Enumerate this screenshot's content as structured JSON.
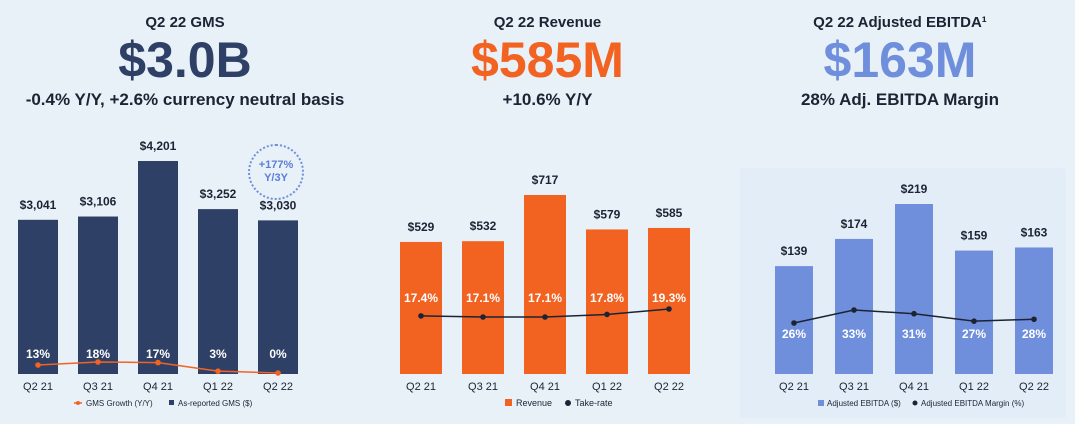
{
  "kpis": [
    {
      "label": "Q2 22 GMS",
      "value": "$3.0B",
      "sub": "-0.4% Y/Y, +2.6% currency neutral basis",
      "color": "#2e4066"
    },
    {
      "label": "Q2 22 Revenue",
      "value": "$585M",
      "sub": "+10.6% Y/Y",
      "color": "#f26322"
    },
    {
      "label": "Q2 22 Adjusted EBITDA¹",
      "value": "$163M",
      "sub": "28% Adj. EBITDA Margin",
      "color": "#6f8fdc"
    }
  ],
  "badge": {
    "line1": "+177%",
    "line2": "Y/3Y"
  },
  "chart_data": [
    {
      "type": "bar",
      "categories": [
        "Q2 21",
        "Q3 21",
        "Q4 21",
        "Q1 22",
        "Q2 22"
      ],
      "bar_color": "#2e4066",
      "line_color": "#f26322",
      "series": [
        {
          "name": "As-reported GMS ($)",
          "values": [
            3041,
            3106,
            4201,
            3252,
            3030
          ],
          "labels": [
            "$3,041",
            "$3,106",
            "$4,201",
            "$3,252",
            "$3,030"
          ]
        },
        {
          "name": "GMS Growth (Y/Y)",
          "values": [
            13,
            18,
            17,
            3,
            0
          ],
          "labels": [
            "13%",
            "18%",
            "17%",
            "3%",
            "0%"
          ]
        }
      ]
    },
    {
      "type": "bar",
      "categories": [
        "Q2 21",
        "Q3 21",
        "Q4 21",
        "Q1 22",
        "Q2 22"
      ],
      "bar_color": "#f26322",
      "line_color": "#1c2333",
      "series": [
        {
          "name": "Revenue",
          "values": [
            529,
            532,
            717,
            579,
            585
          ],
          "labels": [
            "$529",
            "$532",
            "$717",
            "$579",
            "$585"
          ]
        },
        {
          "name": "Take-rate",
          "values": [
            17.4,
            17.1,
            17.1,
            17.8,
            19.3
          ],
          "labels": [
            "17.4%",
            "17.1%",
            "17.1%",
            "17.8%",
            "19.3%"
          ]
        }
      ]
    },
    {
      "type": "bar",
      "categories": [
        "Q2 21",
        "Q3 21",
        "Q4 21",
        "Q1 22",
        "Q2 22"
      ],
      "bar_color": "#6f8fdc",
      "line_color": "#1c2333",
      "series": [
        {
          "name": "Adjusted EBITDA ($)",
          "values": [
            139,
            174,
            219,
            159,
            163
          ],
          "labels": [
            "$139",
            "$174",
            "$219",
            "$159",
            "$163"
          ]
        },
        {
          "name": "Adjusted EBITDA Margin (%)",
          "values": [
            26,
            33,
            31,
            27,
            28
          ],
          "labels": [
            "26%",
            "33%",
            "31%",
            "27%",
            "28%"
          ]
        }
      ]
    }
  ]
}
